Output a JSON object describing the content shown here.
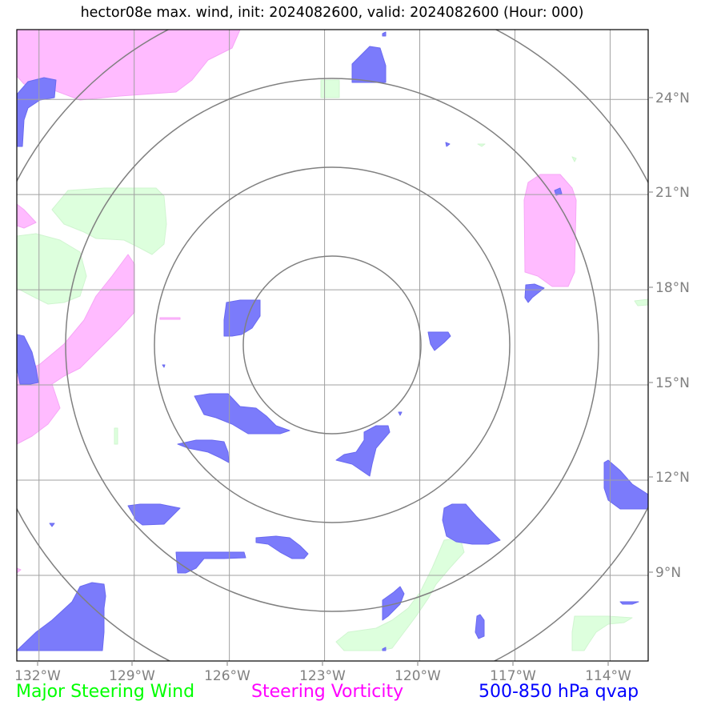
{
  "title": "hector08e max. wind, init: 2024082600, valid: 2024082600 (Hour: 000)",
  "lon_labels": [
    "132°W",
    "129°W",
    "126°W",
    "123°W",
    "120°W",
    "117°W",
    "114°W"
  ],
  "lat_labels": [
    "24°N",
    "21°N",
    "18°N",
    "15°N",
    "12°N",
    "9°N"
  ],
  "legend": {
    "wind": {
      "label": "Major Steering Wind",
      "color": "#00ff00"
    },
    "vorticity": {
      "label": "Steering Vorticity",
      "color": "#ff00ff"
    },
    "qvap": {
      "label": "500-850 hPa qvap",
      "color": "#0000ff"
    }
  },
  "map": {
    "lon_range": [
      -132.7,
      -112.8
    ],
    "lat_range": [
      6.3,
      26.2
    ],
    "grid_color": "#a0a0a0",
    "range_ring_color": "#808080",
    "wind_fill": "#ddffdd",
    "vorticity_fill": "#ffbbff",
    "qvap_fill": "#7b7bfb"
  }
}
